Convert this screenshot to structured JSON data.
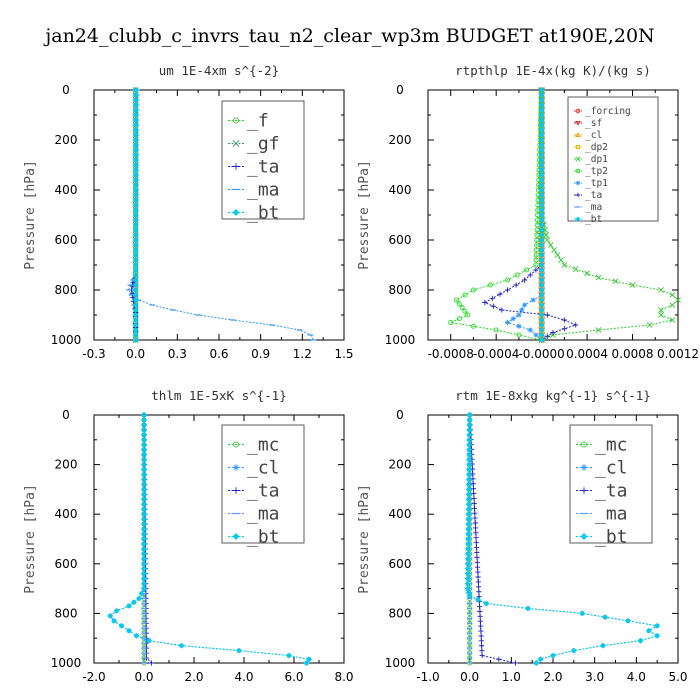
{
  "figure_title": "jan24_clubb_c_invrs_tau_n2_clear_wp3m  BUDGET at190E,20N",
  "chart_data": [
    {
      "type": "line",
      "title": "um  1E-4xm s^{-2}",
      "ylabel": "Pressure [hPa]",
      "xlim": [
        -0.3,
        1.5
      ],
      "ylim": [
        1000,
        0
      ],
      "xticks": [
        "-0.3",
        "0.0",
        "0.3",
        "0.6",
        "0.9",
        "1.2",
        "1.5"
      ],
      "yticks": [
        "0",
        "200",
        "400",
        "600",
        "800",
        "1000"
      ],
      "legend_position": "top-right",
      "series": [
        {
          "name": "_f",
          "color": "#33cc33",
          "marker": "circle",
          "y": [
            0,
            1000
          ],
          "x": [
            0,
            0
          ]
        },
        {
          "name": "_gf",
          "color": "#339966",
          "marker": "x",
          "y": [
            0,
            1000
          ],
          "x": [
            0,
            0
          ]
        },
        {
          "name": "_ta",
          "color": "#2222cc",
          "marker": "plus",
          "y": [
            0,
            740,
            770,
            800,
            830,
            860,
            890,
            920,
            950,
            980,
            1000
          ],
          "x": [
            0,
            0,
            -0.02,
            -0.03,
            -0.02,
            -0.01,
            0,
            0,
            0,
            0,
            0
          ]
        },
        {
          "name": "_ma",
          "color": "#3399ff",
          "marker": "dash",
          "y": [
            0,
            740,
            760,
            780,
            800,
            820,
            840,
            860,
            880,
            900,
            920,
            940,
            960,
            980,
            1000
          ],
          "x": [
            0.01,
            0,
            -0.02,
            -0.04,
            -0.05,
            -0.03,
            0.02,
            0.12,
            0.27,
            0.45,
            0.7,
            0.98,
            1.18,
            1.26,
            1.28
          ]
        },
        {
          "name": "_bt",
          "color": "#00ccee",
          "marker": "diamond",
          "y": [
            0,
            1000
          ],
          "x": [
            0,
            0
          ]
        }
      ]
    },
    {
      "type": "line",
      "title": "rtpthlp  1E-4x(kg K)/(kg s)",
      "ylabel": "Pressure [hPa]",
      "xlim": [
        -0.001,
        0.0012
      ],
      "ylim": [
        1000,
        0
      ],
      "xticks": [
        "-0.0008",
        "-0.0004",
        "-0.0000",
        "0.0004",
        "0.0008",
        "0.0012"
      ],
      "xtick_values": [
        -0.0008,
        -0.0004,
        0,
        0.0004,
        0.0008,
        0.0012
      ],
      "yticks": [
        "0",
        "200",
        "400",
        "600",
        "800",
        "1000"
      ],
      "legend_position": "top-right",
      "series": [
        {
          "name": "_forcing",
          "color": "#ff2222",
          "marker": "circle",
          "y": [
            0,
            1000
          ],
          "x": [
            0,
            0
          ]
        },
        {
          "name": "_sf",
          "color": "#cc2222",
          "marker": "triangle-down",
          "y": [
            0,
            1000
          ],
          "x": [
            0,
            0
          ]
        },
        {
          "name": "_cl",
          "color": "#ff9900",
          "marker": "triangle-up",
          "y": [
            0,
            1000
          ],
          "x": [
            0,
            0
          ]
        },
        {
          "name": "_dp2",
          "color": "#ddbb00",
          "marker": "square",
          "y": [
            0,
            1000
          ],
          "x": [
            0,
            0
          ]
        },
        {
          "name": "_dp1",
          "color": "#33cc33",
          "marker": "x",
          "y": [
            0,
            500,
            600,
            700,
            750,
            780,
            800,
            820,
            840,
            860,
            880,
            900,
            920,
            940,
            960,
            980,
            1000
          ],
          "x": [
            0,
            0,
            5e-05,
            0.0002,
            0.0005,
            0.0008,
            0.00105,
            0.00115,
            0.0012,
            0.00115,
            0.00105,
            0.00105,
            0.00115,
            0.00095,
            0.0005,
            0.0001,
            0
          ]
        },
        {
          "name": "_tp2",
          "color": "#22dd22",
          "marker": "circle",
          "y": [
            0,
            700,
            760,
            800,
            840,
            870,
            900,
            930,
            960,
            1000
          ],
          "x": [
            0,
            -5e-05,
            -0.0003,
            -0.0006,
            -0.00075,
            -0.0007,
            -0.00065,
            -0.0008,
            -0.0004,
            0
          ]
        },
        {
          "name": "_tp1",
          "color": "#3399ff",
          "marker": "star",
          "y": [
            0,
            820,
            860,
            900,
            930,
            960,
            1000
          ],
          "x": [
            0,
            0,
            -0.00015,
            -0.0002,
            -0.0003,
            -0.0001,
            0
          ]
        },
        {
          "name": "_ta",
          "color": "#2222cc",
          "marker": "plus",
          "y": [
            0,
            700,
            760,
            800,
            850,
            880,
            900,
            920,
            940,
            970,
            1000
          ],
          "x": [
            0,
            0,
            -0.00015,
            -0.0003,
            -0.0005,
            -0.00035,
            5e-05,
            0.0002,
            0.0003,
            0.0001,
            0
          ]
        },
        {
          "name": "_ma",
          "color": "#5599ff",
          "marker": "dash",
          "y": [
            0,
            1000
          ],
          "x": [
            0,
            0
          ]
        },
        {
          "name": "_bt",
          "color": "#00ccee",
          "marker": "diamond",
          "y": [
            0,
            1000
          ],
          "x": [
            0,
            0
          ]
        }
      ]
    },
    {
      "type": "line",
      "title": "thlm  1E-5xK s^{-1}",
      "ylabel": "Pressure [hPa]",
      "xlim": [
        -2.0,
        8.0
      ],
      "ylim": [
        1000,
        0
      ],
      "xticks": [
        "-2.0",
        "0.0",
        "2.0",
        "4.0",
        "6.0",
        "8.0"
      ],
      "yticks": [
        "0",
        "200",
        "400",
        "600",
        "800",
        "1000"
      ],
      "legend_position": "top-right",
      "series": [
        {
          "name": "_mc",
          "color": "#33cc33",
          "marker": "circle",
          "y": [
            0,
            1000
          ],
          "x": [
            0,
            0
          ]
        },
        {
          "name": "_cl",
          "color": "#3399ff",
          "marker": "star",
          "y": [
            0,
            700,
            740,
            770,
            790,
            810,
            830,
            850,
            870,
            890,
            910,
            930,
            950,
            970,
            985,
            1000
          ],
          "x": [
            0,
            0,
            -0.2,
            -0.6,
            -1.1,
            -1.35,
            -1.2,
            -0.9,
            -0.6,
            -0.3,
            0.2,
            1.5,
            3.8,
            5.8,
            6.6,
            6.5
          ]
        },
        {
          "name": "_ta",
          "color": "#2222cc",
          "marker": "plus",
          "y": [
            0,
            980,
            1000
          ],
          "x": [
            0,
            0.1,
            0.3
          ]
        },
        {
          "name": "_ma",
          "color": "#5599ff",
          "marker": "dash",
          "y": [
            0,
            1000
          ],
          "x": [
            0,
            0
          ]
        },
        {
          "name": "_bt",
          "color": "#00ccee",
          "marker": "diamond",
          "y": [
            0,
            700,
            740,
            770,
            790,
            810,
            830,
            850,
            870,
            890,
            910,
            930,
            950,
            970,
            985,
            1000
          ],
          "x": [
            0,
            0,
            -0.2,
            -0.6,
            -1.1,
            -1.35,
            -1.2,
            -0.9,
            -0.6,
            -0.3,
            0.2,
            1.5,
            3.8,
            5.8,
            6.6,
            6.5
          ]
        }
      ]
    },
    {
      "type": "line",
      "title": "rtm  1E-8xkg kg^{-1} s^{-1}",
      "ylabel": "Pressure [hPa]",
      "xlim": [
        -1.0,
        5.0
      ],
      "ylim": [
        1000,
        0
      ],
      "xticks": [
        "-1.0",
        "0.0",
        "1.0",
        "2.0",
        "3.0",
        "4.0",
        "5.0"
      ],
      "yticks": [
        "0",
        "200",
        "400",
        "600",
        "800",
        "1000"
      ],
      "legend_position": "top-right",
      "series": [
        {
          "name": "_mc",
          "color": "#33cc33",
          "marker": "circle",
          "y": [
            0,
            1000
          ],
          "x": [
            0,
            0
          ]
        },
        {
          "name": "_cl",
          "color": "#3399ff",
          "marker": "star",
          "y": [
            0,
            700,
            730,
            760,
            780,
            800,
            830,
            850,
            870,
            890,
            910,
            930,
            950,
            970,
            985,
            1000
          ],
          "x": [
            0,
            -0.05,
            0,
            0.4,
            1.4,
            2.7,
            3.8,
            4.5,
            4.3,
            4.5,
            4.1,
            3.2,
            2.5,
            2.0,
            1.7,
            1.6
          ]
        },
        {
          "name": "_ta",
          "color": "#2222cc",
          "marker": "plus",
          "y": [
            0,
            970,
            1000
          ],
          "x": [
            0,
            0.3,
            1.1
          ]
        },
        {
          "name": "_ma",
          "color": "#5599ff",
          "marker": "dash",
          "y": [
            0,
            1000
          ],
          "x": [
            0,
            0
          ]
        },
        {
          "name": "_bt",
          "color": "#00ccee",
          "marker": "diamond",
          "y": [
            0,
            700,
            730,
            760,
            780,
            800,
            830,
            850,
            870,
            890,
            910,
            930,
            950,
            970,
            985,
            1000
          ],
          "x": [
            0,
            -0.05,
            0,
            0.4,
            1.4,
            2.7,
            3.8,
            4.5,
            4.3,
            4.5,
            4.1,
            3.2,
            2.5,
            2.0,
            1.7,
            1.6
          ]
        }
      ]
    }
  ]
}
